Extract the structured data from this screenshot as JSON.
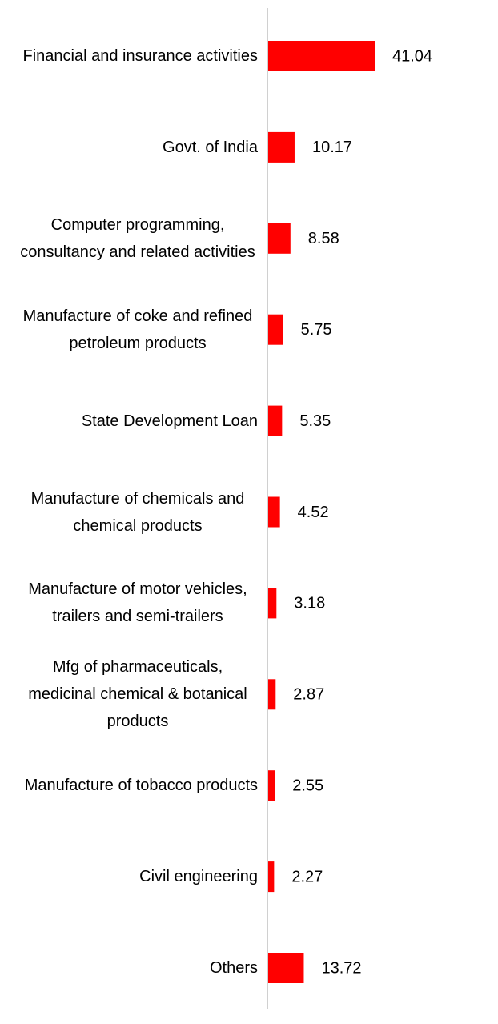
{
  "chart_data": {
    "type": "bar",
    "orientation": "horizontal",
    "categories": [
      "Financial and insurance activities",
      "Govt. of India",
      "Computer programming, consultancy and related activities",
      "Manufacture of coke and refined petroleum products",
      "State Development Loan",
      "Manufacture of chemicals and chemical products",
      "Manufacture of motor vehicles, trailers and semi-trailers",
      "Mfg of pharmaceuticals, medicinal chemical & botanical products",
      "Manufacture of tobacco products",
      "Civil engineering",
      "Others"
    ],
    "values": [
      41.04,
      10.17,
      8.58,
      5.75,
      5.35,
      4.52,
      3.18,
      2.87,
      2.55,
      2.27,
      13.72
    ],
    "color": "#ff0000"
  }
}
